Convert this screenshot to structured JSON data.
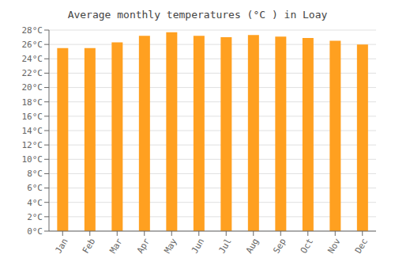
{
  "chart_data": {
    "type": "bar",
    "title": "Average monthly temperatures (°C ) in Loay",
    "categories": [
      "Jan",
      "Feb",
      "Mar",
      "Apr",
      "May",
      "Jun",
      "Jul",
      "Aug",
      "Sep",
      "Oct",
      "Nov",
      "Dec"
    ],
    "values": [
      25.5,
      25.5,
      26.3,
      27.2,
      27.7,
      27.2,
      27.0,
      27.3,
      27.1,
      26.9,
      26.5,
      26.0
    ],
    "color": "#FFA020",
    "ylim": [
      0,
      28
    ],
    "yticks": [
      {
        "value": 0,
        "label": "0°C"
      },
      {
        "value": 2,
        "label": "2°C"
      },
      {
        "value": 4,
        "label": "4°C"
      },
      {
        "value": 6,
        "label": "6°C"
      },
      {
        "value": 8,
        "label": "8°C"
      },
      {
        "value": 10,
        "label": "10°C"
      },
      {
        "value": 12,
        "label": "12°C"
      },
      {
        "value": 14,
        "label": "14°C"
      },
      {
        "value": 16,
        "label": "16°C"
      },
      {
        "value": 18,
        "label": "18°C"
      },
      {
        "value": 20,
        "label": "20°C"
      },
      {
        "value": 22,
        "label": "22°C"
      },
      {
        "value": 24,
        "label": "24°C"
      },
      {
        "value": 26,
        "label": "26°C"
      },
      {
        "value": 28,
        "label": "28°C"
      }
    ],
    "grid": true
  }
}
